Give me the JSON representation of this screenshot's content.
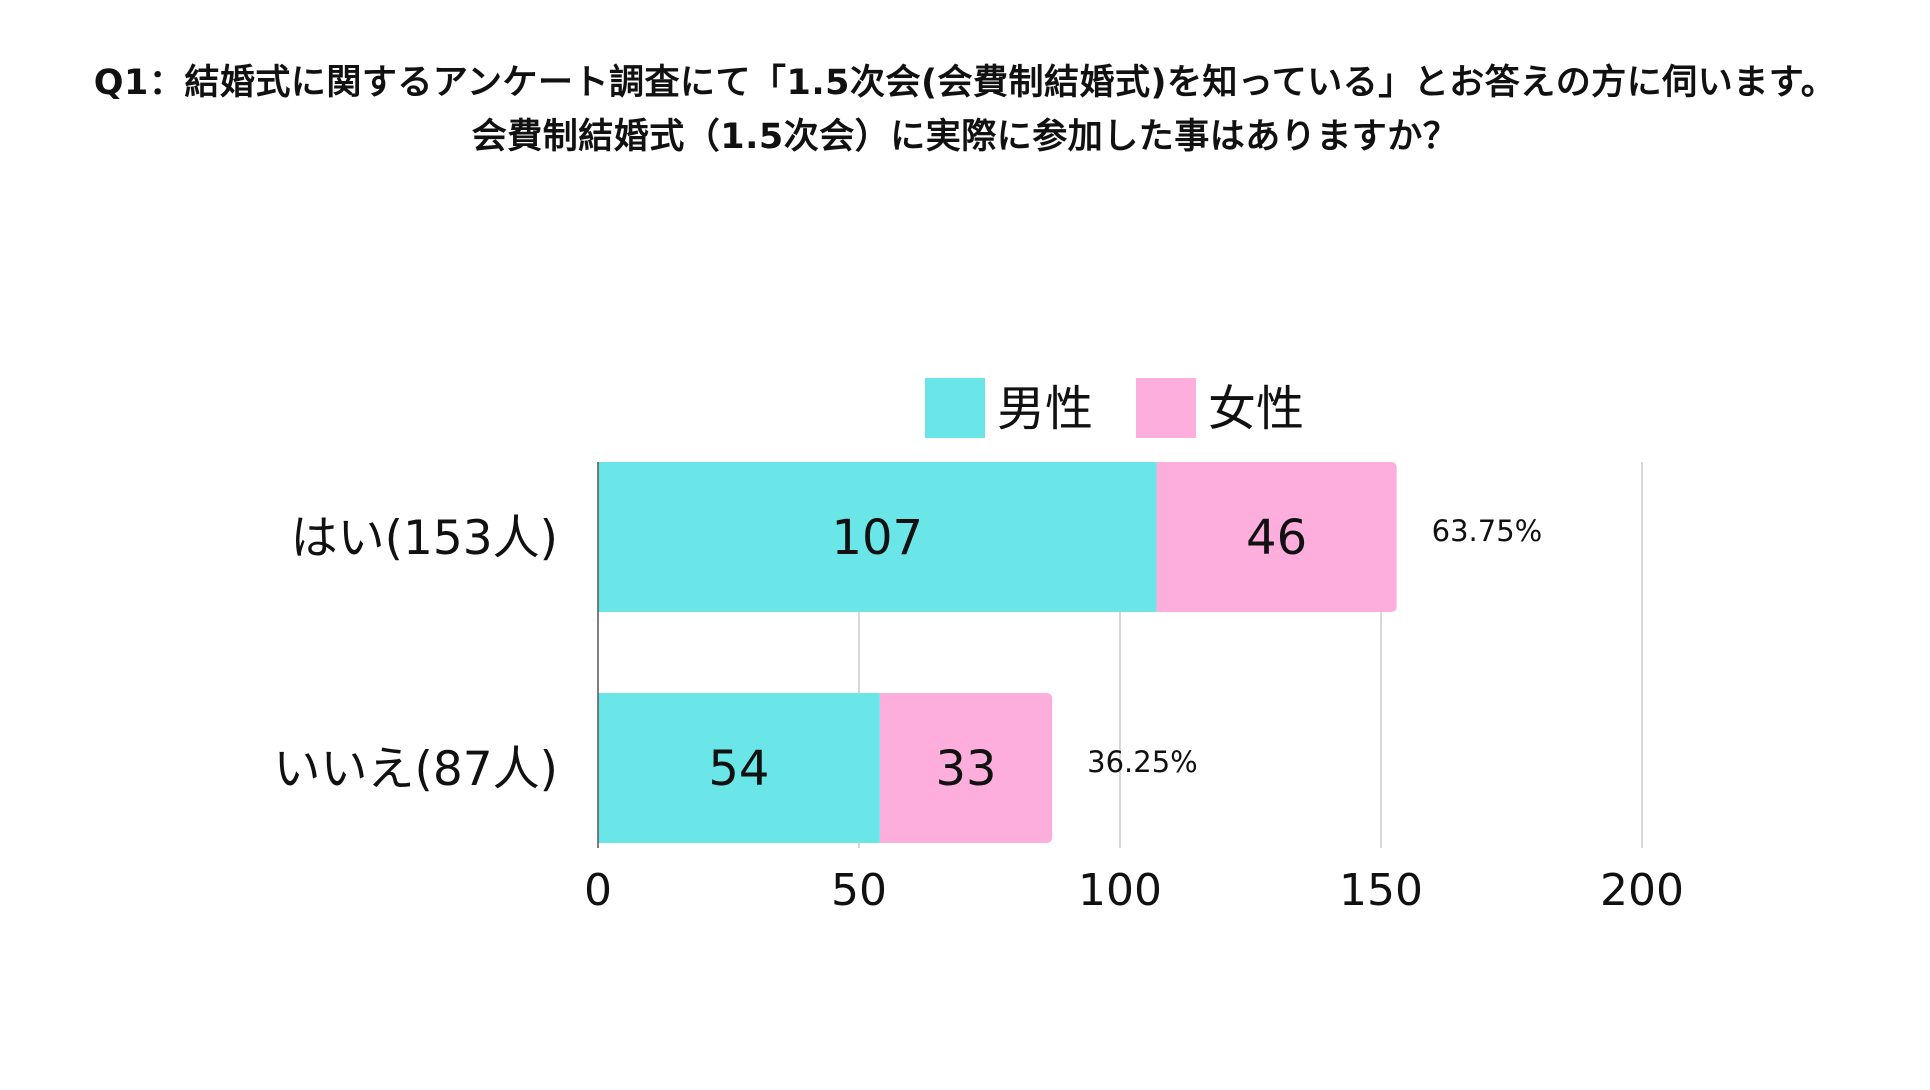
{
  "title": {
    "line1": "Q1：結婚式に関するアンケート調査にて「1.5次会(会費制結婚式)を知っている」とお答えの方に伺います。",
    "line2": "会費制結婚式（1.5次会）に実際に参加した事はありますか？"
  },
  "chart_data": {
    "type": "bar",
    "orientation": "horizontal",
    "stacked": true,
    "title": "Q1：結婚式に関するアンケート調査にて「1.5次会(会費制結婚式)を知っている」とお答えの方に伺います。 会費制結婚式（1.5次会）に実際に参加した事はありますか？",
    "categories": [
      "はい(153人)",
      "いいえ(87人)"
    ],
    "series": [
      {
        "name": "男性",
        "values": [
          107,
          54
        ],
        "color": "#6ae5e8"
      },
      {
        "name": "女性",
        "values": [
          46,
          33
        ],
        "color": "#fdaedd"
      }
    ],
    "totals_percent_labels": [
      "63.75%",
      "36.25%"
    ],
    "xlim": [
      0,
      200
    ],
    "xticks": [
      0,
      50,
      100,
      150,
      200
    ],
    "xlabel": "",
    "ylabel": "",
    "grid": "vertical",
    "legend_position": "top-center"
  },
  "colors": {
    "grid": "#cccccc",
    "axis": "#555555",
    "text": "#111111"
  }
}
